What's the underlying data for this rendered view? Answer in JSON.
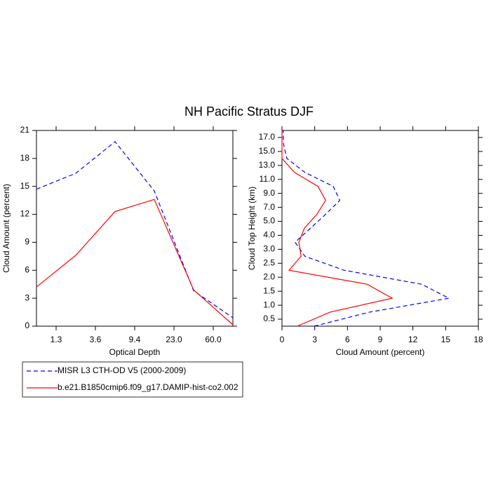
{
  "title": "NH Pacific Stratus DJF",
  "chart_data": [
    {
      "type": "line",
      "xlabel": "Optical Depth",
      "ylabel": "Cloud Amount (percent)",
      "x": [
        0,
        1,
        2,
        3,
        4,
        5
      ],
      "xlim": [
        0,
        5
      ],
      "xticks": [
        {
          "value": 0.5,
          "label": "1.3"
        },
        {
          "value": 1.5,
          "label": "3.6"
        },
        {
          "value": 2.5,
          "label": "9.4"
        },
        {
          "value": 3.5,
          "label": "23.0"
        },
        {
          "value": 4.5,
          "label": "60.0"
        }
      ],
      "ylim": [
        0,
        21
      ],
      "yticks": [
        0,
        3,
        6,
        9,
        12,
        15,
        18,
        21
      ],
      "legend": "below",
      "series": [
        {
          "name": "MISR L3 CTH-OD V5 (2000-2009)",
          "color": "#0000ff",
          "linestyle": "dashed",
          "values": [
            14.7,
            16.4,
            19.8,
            14.5,
            3.8,
            0.9
          ]
        },
        {
          "name": "b.e21.B1850cmip6.f09_g17.DAMIP-hist-co2.002",
          "color": "#ff0000",
          "linestyle": "solid",
          "values": [
            4.2,
            7.6,
            12.3,
            13.6,
            3.9,
            0.15
          ]
        }
      ]
    },
    {
      "type": "line",
      "orientation": "horizontal",
      "xlabel": "Cloud Amount (percent)",
      "ylabel": "Cloud Top Height (km)",
      "y": [
        0,
        1,
        2,
        3,
        4,
        5,
        6,
        7,
        8,
        9,
        10,
        11,
        12,
        13,
        14
      ],
      "ylim": [
        0,
        14
      ],
      "yticks": [
        {
          "value": 0.5,
          "label": "0.5"
        },
        {
          "value": 1.5,
          "label": "1.0"
        },
        {
          "value": 2.5,
          "label": "1.5"
        },
        {
          "value": 3.5,
          "label": "2.0"
        },
        {
          "value": 4.5,
          "label": "2.5"
        },
        {
          "value": 5.5,
          "label": "3.0"
        },
        {
          "value": 6.5,
          "label": "4.0"
        },
        {
          "value": 7.5,
          "label": "5.0"
        },
        {
          "value": 8.5,
          "label": "7.0"
        },
        {
          "value": 9.5,
          "label": "9.0"
        },
        {
          "value": 10.5,
          "label": "11.0"
        },
        {
          "value": 11.5,
          "label": "13.0"
        },
        {
          "value": 12.5,
          "label": "15.0"
        },
        {
          "value": 13.5,
          "label": "17.0"
        }
      ],
      "xlim": [
        0,
        18
      ],
      "xticks": [
        0,
        3,
        6,
        9,
        12,
        15,
        18
      ],
      "series": [
        {
          "color": "#0000ff",
          "linestyle": "dashed",
          "values": [
            2.95,
            8.0,
            15.3,
            12.8,
            5.7,
            2.1,
            1.2,
            2.6,
            4.0,
            5.3,
            4.7,
            2.1,
            0.45,
            0.15,
            0.1
          ]
        },
        {
          "color": "#ff0000",
          "linestyle": "solid",
          "values": [
            1.4,
            4.4,
            10.1,
            7.8,
            0.65,
            1.75,
            1.55,
            2.05,
            3.2,
            4.0,
            3.3,
            1.15,
            0,
            0,
            0
          ]
        }
      ]
    }
  ]
}
